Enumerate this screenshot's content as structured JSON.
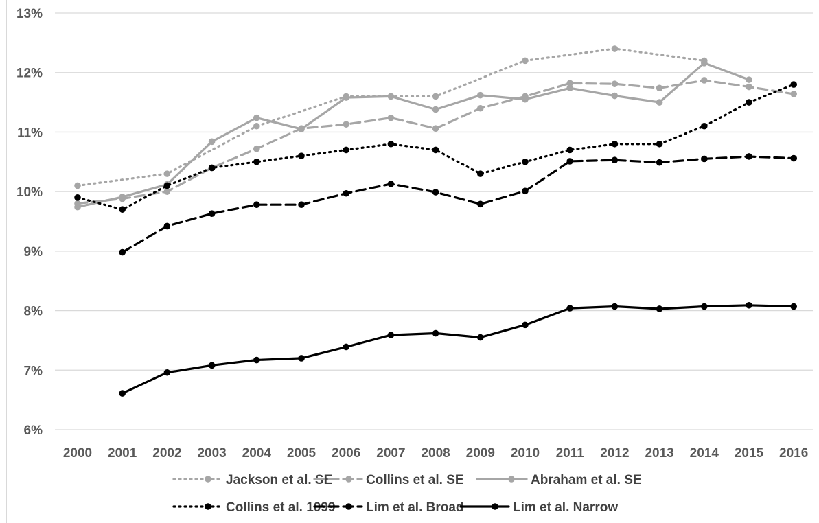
{
  "chart_data": {
    "type": "line",
    "title": "",
    "xlabel": "",
    "ylabel": "",
    "x": [
      "2000",
      "2001",
      "2002",
      "2003",
      "2004",
      "2005",
      "2006",
      "2007",
      "2008",
      "2009",
      "2010",
      "2011",
      "2012",
      "2013",
      "2014",
      "2015",
      "2016"
    ],
    "ylim": [
      6,
      13
    ],
    "yticks": [
      "6%",
      "7%",
      "8%",
      "9%",
      "10%",
      "11%",
      "12%",
      "13%"
    ],
    "grid": "horizontal",
    "legend_position": "bottom",
    "series": [
      {
        "name": "Jackson et al. SE",
        "color": "#a6a6a6",
        "style": "dotted",
        "values": [
          10.1,
          null,
          10.3,
          null,
          11.1,
          null,
          11.6,
          11.6,
          11.6,
          null,
          12.2,
          null,
          12.4,
          null,
          12.2,
          null,
          null
        ]
      },
      {
        "name": "Collins et al. SE",
        "color": "#a6a6a6",
        "style": "dashed",
        "values": [
          9.8,
          9.88,
          10.0,
          10.4,
          10.72,
          11.06,
          11.13,
          11.24,
          11.06,
          11.4,
          11.6,
          11.82,
          11.81,
          11.74,
          11.87,
          11.76,
          11.64
        ]
      },
      {
        "name": "Abraham et al. SE",
        "color": "#a6a6a6",
        "style": "solid",
        "values": [
          9.74,
          9.91,
          10.12,
          10.84,
          11.24,
          11.05,
          11.58,
          11.6,
          11.38,
          11.62,
          11.55,
          11.74,
          11.61,
          11.5,
          12.16,
          11.88,
          null
        ]
      },
      {
        "name": "Collins et al. 1099",
        "color": "#000000",
        "style": "dotted",
        "values": [
          9.9,
          9.7,
          10.1,
          10.4,
          10.5,
          10.6,
          10.7,
          10.8,
          10.7,
          10.3,
          10.5,
          10.7,
          10.8,
          10.8,
          11.1,
          11.5,
          11.8
        ]
      },
      {
        "name": "Lim et al. Broad",
        "color": "#000000",
        "style": "dashed",
        "values": [
          null,
          8.98,
          9.42,
          9.63,
          9.78,
          9.78,
          9.97,
          10.13,
          9.99,
          9.79,
          10.01,
          10.51,
          10.53,
          10.49,
          10.55,
          10.59,
          10.56
        ]
      },
      {
        "name": "Lim et al. Narrow",
        "color": "#000000",
        "style": "solid",
        "values": [
          null,
          6.61,
          6.96,
          7.08,
          7.17,
          7.2,
          7.39,
          7.59,
          7.62,
          7.55,
          7.76,
          8.04,
          8.07,
          8.03,
          8.07,
          8.09,
          8.07
        ]
      }
    ]
  }
}
